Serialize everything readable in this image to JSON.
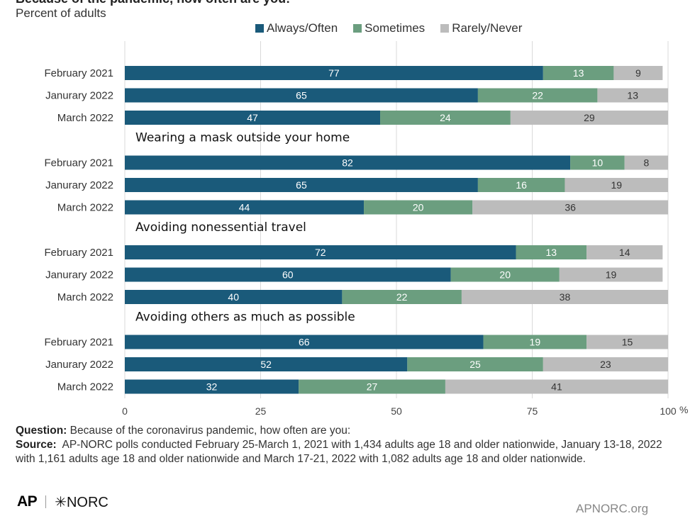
{
  "header": {
    "title": "Because of the pandemic, how often are you:",
    "subtitle": "Percent of adults"
  },
  "legend": [
    {
      "label": "Always/Often",
      "color": "#1a5a7a"
    },
    {
      "label": "Sometimes",
      "color": "#6b9e7f"
    },
    {
      "label": "Rarely/Never",
      "color": "#bcbcbc"
    }
  ],
  "chart_data": {
    "type": "bar",
    "orientation": "horizontal",
    "stacked": true,
    "xlim": [
      0,
      100
    ],
    "x_ticks": [
      "0",
      "25",
      "50",
      "75",
      "100"
    ],
    "x_unit": "%",
    "series_names": [
      "Always/Often",
      "Sometimes",
      "Rarely/Never"
    ],
    "colors": [
      "#1a5a7a",
      "#6b9e7f",
      "#bcbcbc"
    ],
    "groups": [
      {
        "label": "",
        "rows": [
          {
            "label": "February 2021",
            "values": [
              77,
              13,
              9
            ]
          },
          {
            "label": "Janurary 2022",
            "values": [
              65,
              22,
              13
            ]
          },
          {
            "label": "March 2022",
            "values": [
              47,
              24,
              29
            ]
          }
        ]
      },
      {
        "label": "Wearing a mask outside your home",
        "rows": [
          {
            "label": "February 2021",
            "values": [
              82,
              10,
              8
            ]
          },
          {
            "label": "Janurary 2022",
            "values": [
              65,
              16,
              19
            ]
          },
          {
            "label": "March 2022",
            "values": [
              44,
              20,
              36
            ]
          }
        ]
      },
      {
        "label": "Avoiding nonessential travel",
        "rows": [
          {
            "label": "February 2021",
            "values": [
              72,
              13,
              14
            ]
          },
          {
            "label": "Janurary 2022",
            "values": [
              60,
              20,
              19
            ]
          },
          {
            "label": "March 2022",
            "values": [
              40,
              22,
              38
            ]
          }
        ]
      },
      {
        "label": "Avoiding others as much as possible",
        "rows": [
          {
            "label": "February 2021",
            "values": [
              66,
              19,
              15
            ]
          },
          {
            "label": "Janurary 2022",
            "values": [
              52,
              25,
              23
            ]
          },
          {
            "label": "March 2022",
            "values": [
              32,
              27,
              41
            ]
          }
        ]
      }
    ]
  },
  "footer": {
    "question_label": "Question:",
    "question_text": "Because of the coronavirus pandemic, how often are you:",
    "source_label": "Source:",
    "source_text": "AP-NORC polls conducted February 25-March 1, 2021 with 1,434 adults age 18 and older nationwide, January 13-18, 2022 with 1,161 adults age 18 and older nationwide and March 17-21, 2022 with 1,082 adults age 18 and older nationwide."
  },
  "branding": {
    "ap": "AP",
    "norc": "✳NORC",
    "site": "APNORC.org"
  }
}
